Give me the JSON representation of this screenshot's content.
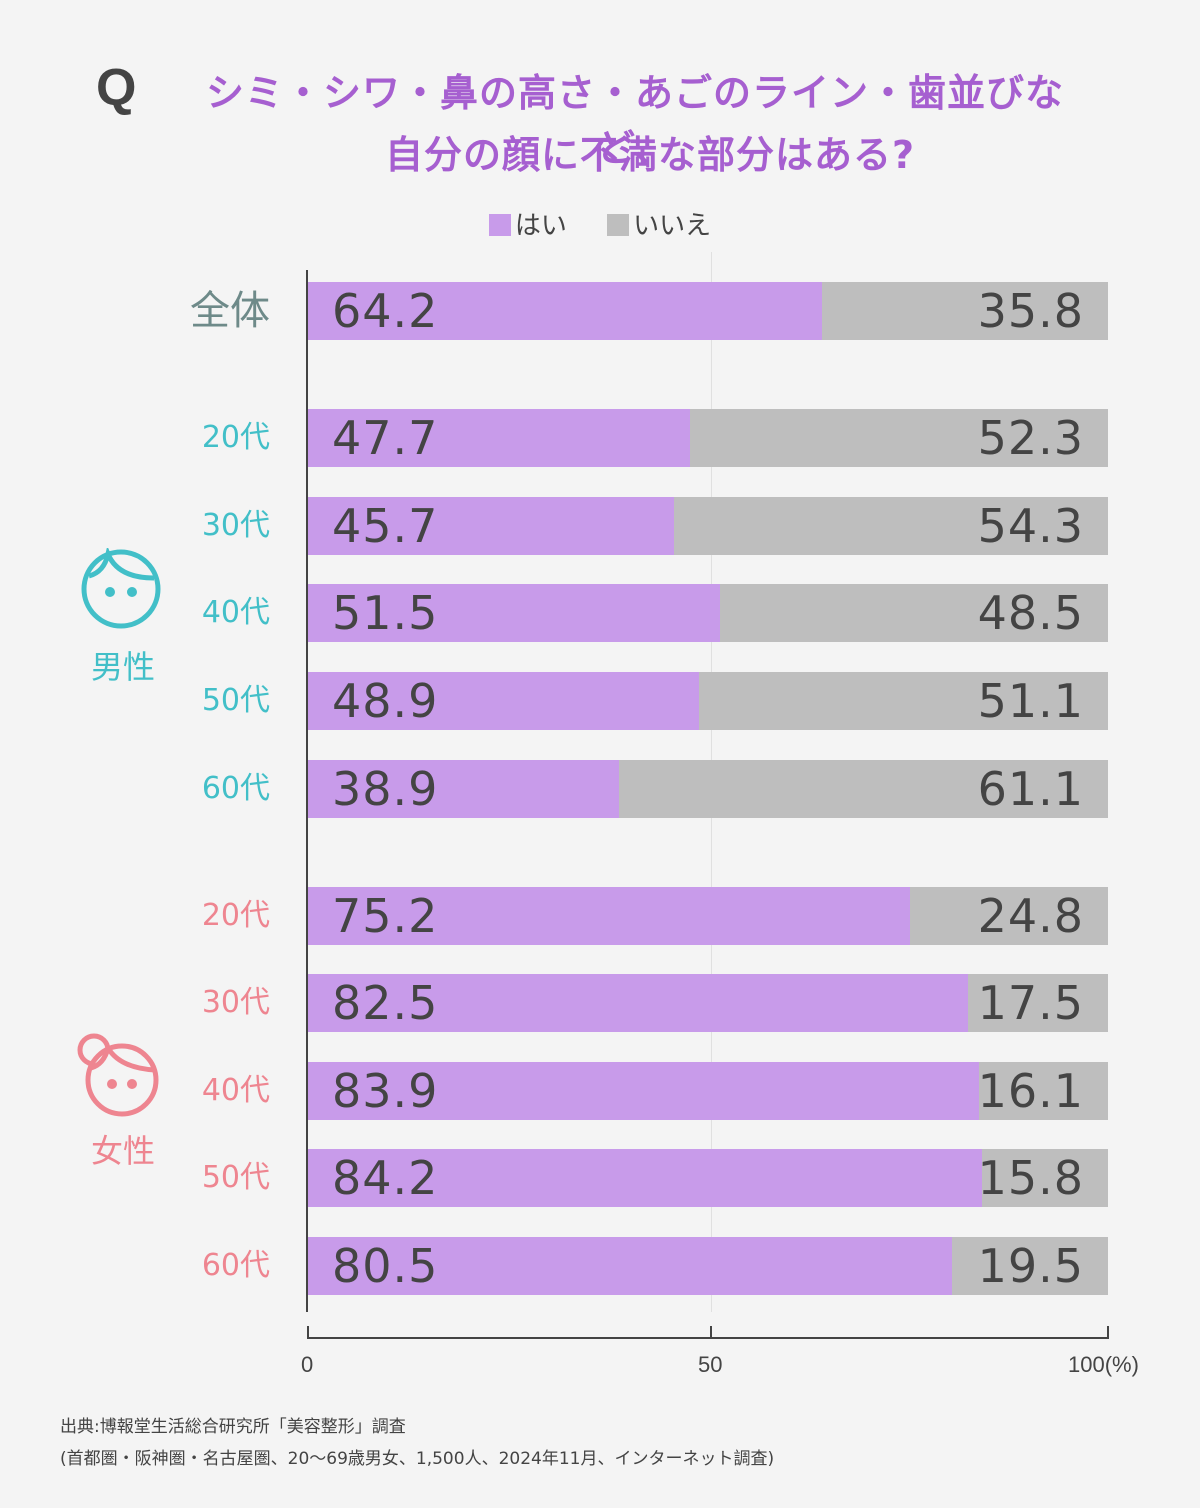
{
  "header": {
    "q_mark": "Q",
    "title_line1": "シミ・シワ・鼻の高さ・あごのライン・歯並びなど、",
    "title_line2": "自分の顔に不満な部分はある?"
  },
  "legend": [
    {
      "label": "はい",
      "color": "#c89bea"
    },
    {
      "label": "いいえ",
      "color": "#bebebe"
    }
  ],
  "groups": {
    "male": {
      "label": "男性",
      "color": "#42bfc8"
    },
    "female": {
      "label": "女性",
      "color": "#ee8590"
    }
  },
  "axis": {
    "ticks": [
      "0",
      "50",
      "100(%)"
    ]
  },
  "rows": [
    {
      "label": "全体",
      "group": "total",
      "yes": "64.2",
      "no": "35.8"
    },
    {
      "label": "20代",
      "group": "male",
      "yes": "47.7",
      "no": "52.3"
    },
    {
      "label": "30代",
      "group": "male",
      "yes": "45.7",
      "no": "54.3"
    },
    {
      "label": "40代",
      "group": "male",
      "yes": "51.5",
      "no": "48.5"
    },
    {
      "label": "50代",
      "group": "male",
      "yes": "48.9",
      "no": "51.1"
    },
    {
      "label": "60代",
      "group": "male",
      "yes": "38.9",
      "no": "61.1"
    },
    {
      "label": "20代",
      "group": "female",
      "yes": "75.2",
      "no": "24.8"
    },
    {
      "label": "30代",
      "group": "female",
      "yes": "82.5",
      "no": "17.5"
    },
    {
      "label": "40代",
      "group": "female",
      "yes": "83.9",
      "no": "16.1"
    },
    {
      "label": "50代",
      "group": "female",
      "yes": "84.2",
      "no": "15.8"
    },
    {
      "label": "60代",
      "group": "female",
      "yes": "80.5",
      "no": "19.5"
    }
  ],
  "footer": {
    "source": "出典:博報堂生活総合研究所「美容整形」調査",
    "note": "(首都圏・阪神圏・名古屋圏、20〜69歳男女、1,500人、2024年11月、インターネット調査)"
  },
  "chart_data": {
    "type": "bar",
    "stacked": true,
    "orientation": "horizontal",
    "title": "シミ・シワ・鼻の高さ・あごのライン・歯並びなど、自分の顔に不満な部分はある?",
    "categories": [
      "全体",
      "男性20代",
      "男性30代",
      "男性40代",
      "男性50代",
      "男性60代",
      "女性20代",
      "女性30代",
      "女性40代",
      "女性50代",
      "女性60代"
    ],
    "series": [
      {
        "name": "はい",
        "color": "#c89bea",
        "values": [
          64.2,
          47.7,
          45.7,
          51.5,
          48.9,
          38.9,
          75.2,
          82.5,
          83.9,
          84.2,
          80.5
        ]
      },
      {
        "name": "いいえ",
        "color": "#bebebe",
        "values": [
          35.8,
          52.3,
          54.3,
          48.5,
          51.1,
          61.1,
          24.8,
          17.5,
          16.1,
          15.8,
          19.5
        ]
      }
    ],
    "xlabel": "(%)",
    "xlim": [
      0,
      100
    ],
    "xticks": [
      0,
      50,
      100
    ],
    "legend_position": "top",
    "grid": "vertical line at 50"
  }
}
